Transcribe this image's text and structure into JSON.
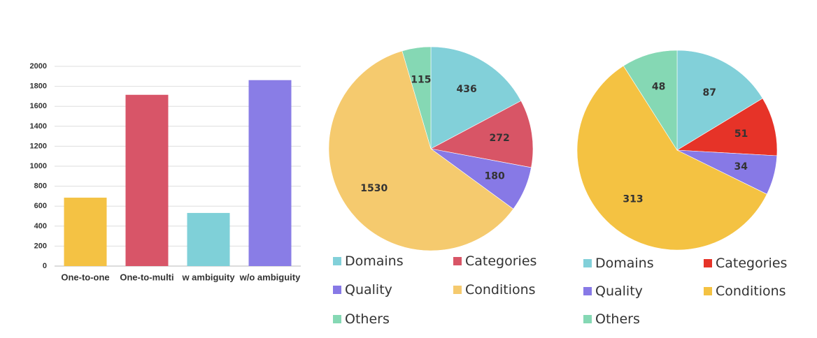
{
  "chart_data": [
    {
      "type": "bar",
      "categories": [
        "One-to-one",
        "One-to-multi",
        "w ambiguity",
        "w/o ambiguity"
      ],
      "values": [
        685,
        1715,
        532,
        1862
      ],
      "colors": [
        "#f4c244",
        "#d85568",
        "#7fd0d8",
        "#897de6"
      ],
      "ylim": [
        0,
        2000
      ],
      "yticks": [
        0,
        200,
        400,
        600,
        800,
        1000,
        1200,
        1400,
        1600,
        1800,
        2000
      ],
      "grid": true
    },
    {
      "type": "pie",
      "labels": [
        "Domains",
        "Categories",
        "Quality",
        "Conditions",
        "Others"
      ],
      "values": [
        436,
        272,
        180,
        1530,
        115
      ],
      "colors": [
        "#82d0d9",
        "#d85566",
        "#8779e6",
        "#f5ca6e",
        "#85d8b4"
      ],
      "legend": "bottom"
    },
    {
      "type": "pie",
      "labels": [
        "Domains",
        "Categories",
        "Quality",
        "Conditions",
        "Others"
      ],
      "values": [
        87,
        51,
        34,
        313,
        48
      ],
      "colors": [
        "#82d0d9",
        "#e63328",
        "#8779e6",
        "#f4c242",
        "#85d8b4"
      ],
      "legend": "bottom"
    }
  ]
}
